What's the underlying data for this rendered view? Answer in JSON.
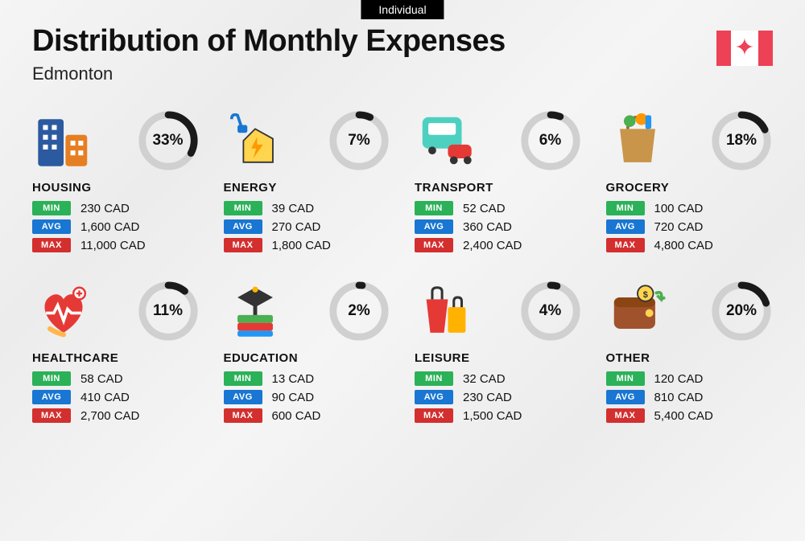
{
  "badge": "Individual",
  "title": "Distribution of Monthly Expenses",
  "subtitle": "Edmonton",
  "currency": "CAD",
  "colors": {
    "min_badge": "#2bb158",
    "avg_badge": "#1976d2",
    "max_badge": "#d32f2f",
    "donut_track": "#d0d0d0",
    "donut_fill": "#1a1a1a",
    "flag": "#ed4155",
    "text": "#111111",
    "background": "#f2f2f2"
  },
  "labels": {
    "min": "MIN",
    "avg": "AVG",
    "max": "MAX"
  },
  "categories": [
    {
      "name": "HOUSING",
      "percent": 33,
      "min": "230",
      "avg": "1,600",
      "max": "11,000",
      "icon": "housing-icon"
    },
    {
      "name": "ENERGY",
      "percent": 7,
      "min": "39",
      "avg": "270",
      "max": "1,800",
      "icon": "energy-icon"
    },
    {
      "name": "TRANSPORT",
      "percent": 6,
      "min": "52",
      "avg": "360",
      "max": "2,400",
      "icon": "transport-icon"
    },
    {
      "name": "GROCERY",
      "percent": 18,
      "min": "100",
      "avg": "720",
      "max": "4,800",
      "icon": "grocery-icon"
    },
    {
      "name": "HEALTHCARE",
      "percent": 11,
      "min": "58",
      "avg": "410",
      "max": "2,700",
      "icon": "healthcare-icon"
    },
    {
      "name": "EDUCATION",
      "percent": 2,
      "min": "13",
      "avg": "90",
      "max": "600",
      "icon": "education-icon"
    },
    {
      "name": "LEISURE",
      "percent": 4,
      "min": "32",
      "avg": "230",
      "max": "1,500",
      "icon": "leisure-icon"
    },
    {
      "name": "OTHER",
      "percent": 20,
      "min": "120",
      "avg": "810",
      "max": "5,400",
      "icon": "other-icon"
    }
  ]
}
